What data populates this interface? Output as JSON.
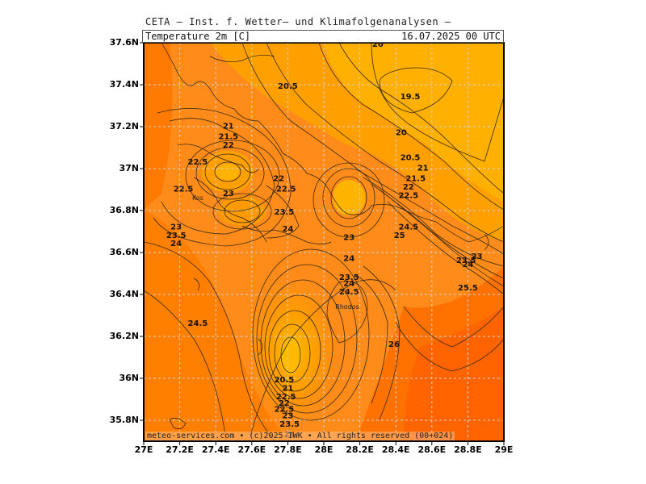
{
  "header": {
    "institute": "CETA — Inst. f. Wetter— und Klimafolgenanalysen —",
    "param": "Temperature 2m [C]",
    "datetime": "16.07.2025 00 UTC"
  },
  "footer": "meteo-services.com • (c)2025 IWK • All rights reserved (00+024)",
  "axes": {
    "y_labels": [
      "37.6N",
      "37.4N",
      "37.2N",
      "37N",
      "36.8N",
      "36.6N",
      "36.4N",
      "36.2N",
      "36N",
      "35.8N"
    ],
    "x_labels": [
      "27E",
      "27.2E",
      "27.4E",
      "27.6E",
      "27.8E",
      "28E",
      "28.2E",
      "28.4E",
      "28.6E",
      "28.8E",
      "29E"
    ]
  },
  "colors": {
    "warm_orange": "#ff8c1a",
    "deep_orange": "#ff6a00",
    "light_orange": "#ffb000",
    "contour": "#3a2a10",
    "grid": "#c8c8c8"
  },
  "contour_labels": [
    {
      "v": "20",
      "lon": 28.3,
      "lat": 37.58
    },
    {
      "v": "20.5",
      "lon": 27.8,
      "lat": 37.38
    },
    {
      "v": "19.5",
      "lon": 28.48,
      "lat": 37.33
    },
    {
      "v": "20",
      "lon": 28.43,
      "lat": 37.16
    },
    {
      "v": "20.5",
      "lon": 28.48,
      "lat": 37.04
    },
    {
      "v": "21",
      "lon": 28.55,
      "lat": 36.99
    },
    {
      "v": "21.5",
      "lon": 28.51,
      "lat": 36.94
    },
    {
      "v": "22",
      "lon": 28.47,
      "lat": 36.9
    },
    {
      "v": "22.5",
      "lon": 28.47,
      "lat": 36.86
    },
    {
      "v": "24.5",
      "lon": 28.47,
      "lat": 36.71
    },
    {
      "v": "25",
      "lon": 28.42,
      "lat": 36.67
    },
    {
      "v": "21",
      "lon": 27.47,
      "lat": 37.19
    },
    {
      "v": "21.5",
      "lon": 27.47,
      "lat": 37.14
    },
    {
      "v": "22",
      "lon": 27.47,
      "lat": 37.1
    },
    {
      "v": "22.5",
      "lon": 27.3,
      "lat": 37.02
    },
    {
      "v": "23",
      "lon": 27.47,
      "lat": 36.87
    },
    {
      "v": "22.5",
      "lon": 27.22,
      "lat": 36.89
    },
    {
      "v": "22",
      "lon": 27.75,
      "lat": 36.94
    },
    {
      "v": "22.5",
      "lon": 27.79,
      "lat": 36.89
    },
    {
      "v": "23.5",
      "lon": 27.78,
      "lat": 36.78
    },
    {
      "v": "24",
      "lon": 27.8,
      "lat": 36.7
    },
    {
      "v": "23",
      "lon": 28.14,
      "lat": 36.66
    },
    {
      "v": "24",
      "lon": 28.14,
      "lat": 36.56
    },
    {
      "v": "23",
      "lon": 27.18,
      "lat": 36.71
    },
    {
      "v": "23.5",
      "lon": 27.18,
      "lat": 36.67
    },
    {
      "v": "24",
      "lon": 27.18,
      "lat": 36.63
    },
    {
      "v": "23.5",
      "lon": 28.14,
      "lat": 36.47
    },
    {
      "v": "24",
      "lon": 28.14,
      "lat": 36.44
    },
    {
      "v": "24.5",
      "lon": 28.14,
      "lat": 36.4
    },
    {
      "v": "24.5",
      "lon": 27.3,
      "lat": 36.25
    },
    {
      "v": "26",
      "lon": 28.39,
      "lat": 36.15
    },
    {
      "v": "25.5",
      "lon": 28.8,
      "lat": 36.42
    },
    {
      "v": "23.5",
      "lon": 28.79,
      "lat": 36.55
    },
    {
      "v": "23",
      "lon": 28.85,
      "lat": 36.57
    },
    {
      "v": "24",
      "lon": 28.8,
      "lat": 36.53
    },
    {
      "v": "20.5",
      "lon": 27.78,
      "lat": 35.98
    },
    {
      "v": "21",
      "lon": 27.8,
      "lat": 35.94
    },
    {
      "v": "22.5",
      "lon": 27.79,
      "lat": 35.9
    },
    {
      "v": "22",
      "lon": 27.78,
      "lat": 35.87
    },
    {
      "v": "22.5",
      "lon": 27.78,
      "lat": 35.84
    },
    {
      "v": "23",
      "lon": 27.8,
      "lat": 35.81
    },
    {
      "v": "23.5",
      "lon": 27.81,
      "lat": 35.77
    },
    {
      "v": "24",
      "lon": 27.81,
      "lat": 35.72
    }
  ],
  "place_labels": [
    {
      "v": "Kos",
      "lon": 27.3,
      "lat": 36.85
    },
    {
      "v": "Rhodos",
      "lon": 28.13,
      "lat": 36.33
    }
  ]
}
